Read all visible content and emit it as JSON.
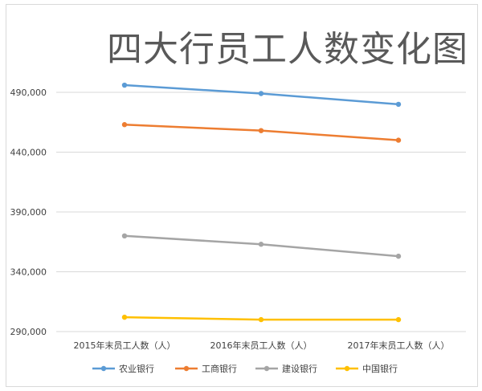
{
  "chart_data": {
    "type": "line",
    "title": "四大行员工人数变化图",
    "xlabel": "",
    "ylabel": "",
    "categories": [
      "2015年末员工人数（人）",
      "2016年末员工人数（人）",
      "2017年末员工人数（人）"
    ],
    "y_ticks": [
      "290,000",
      "340,000",
      "390,000",
      "440,000",
      "490,000"
    ],
    "ylim": [
      290000,
      490000
    ],
    "grid": true,
    "legend_position": "bottom",
    "series": [
      {
        "name": "农业银行",
        "color": "#5b9bd5",
        "values": [
          496000,
          489000,
          480000
        ]
      },
      {
        "name": "工商银行",
        "color": "#ed7d31",
        "values": [
          463000,
          458000,
          450000
        ]
      },
      {
        "name": "建设银行",
        "color": "#a5a5a5",
        "values": [
          370000,
          363000,
          353000
        ]
      },
      {
        "name": "中国银行",
        "color": "#ffc000",
        "values": [
          302000,
          300000,
          300000
        ]
      }
    ]
  }
}
